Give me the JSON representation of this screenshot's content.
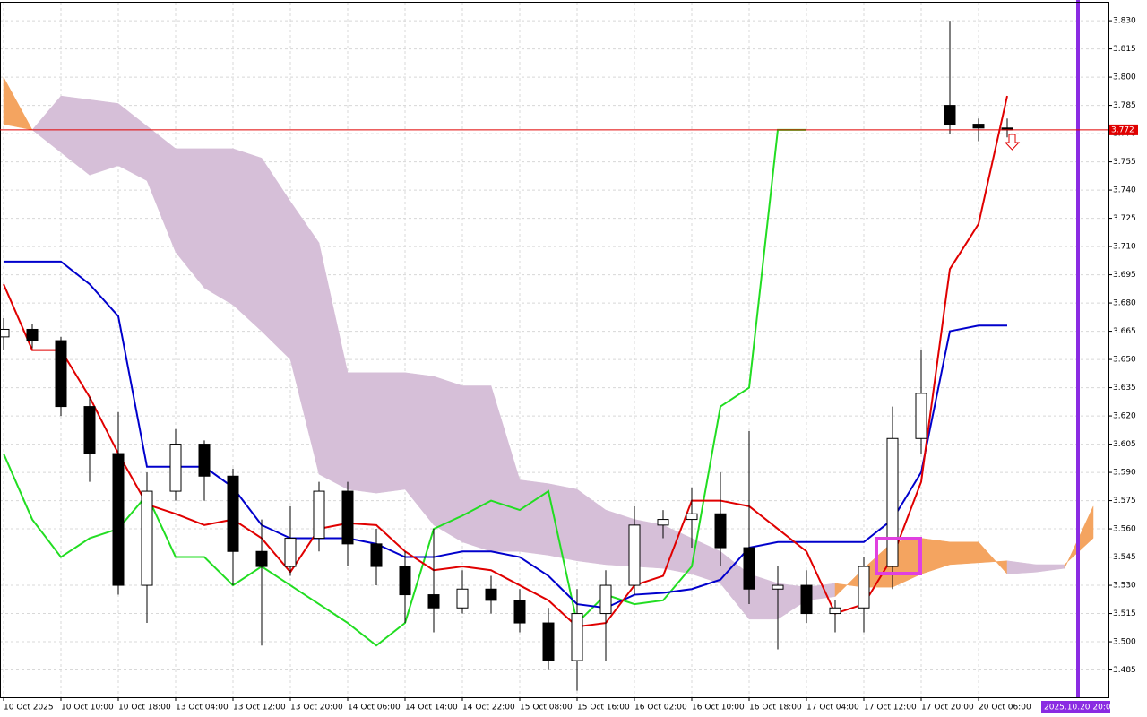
{
  "chart_data": {
    "type": "candlestick",
    "categories": [
      "10 Oct 2025",
      null,
      "10 Oct 10:00",
      null,
      "10 Oct 18:00",
      null,
      "13 Oct 04:00",
      null,
      "13 Oct 12:00",
      null,
      "13 Oct 20:00",
      null,
      "14 Oct 06:00",
      null,
      "14 Oct 14:00",
      null,
      "14 Oct 22:00",
      null,
      "15 Oct 08:00",
      null,
      "15 Oct 16:00",
      null,
      "16 Oct 02:00",
      null,
      "16 Oct 10:00",
      null,
      "16 Oct 18:00",
      null,
      "17 Oct 04:00",
      null,
      "17 Oct 12:00",
      null,
      "17 Oct 20:00",
      null,
      "20 Oct 06:00",
      null,
      null,
      null,
      null
    ],
    "open": [
      3.662,
      3.666,
      3.66,
      3.625,
      3.6,
      3.53,
      3.58,
      3.605,
      3.588,
      3.548,
      3.54,
      3.555,
      3.58,
      3.552,
      3.54,
      3.525,
      3.518,
      3.528,
      3.522,
      3.51,
      3.49,
      3.515,
      3.53,
      3.562,
      3.565,
      3.568,
      3.55,
      3.528,
      3.53,
      3.515,
      3.518,
      3.54,
      3.608,
      3.785,
      3.775,
      3.773,
      null,
      null,
      null
    ],
    "high": [
      3.672,
      3.669,
      3.662,
      3.63,
      3.622,
      3.59,
      3.613,
      3.607,
      3.592,
      3.565,
      3.572,
      3.585,
      3.585,
      3.56,
      3.548,
      3.56,
      3.538,
      3.535,
      3.528,
      3.518,
      3.528,
      3.538,
      3.572,
      3.57,
      3.582,
      3.59,
      3.612,
      3.54,
      3.538,
      3.522,
      3.545,
      3.625,
      3.655,
      3.83,
      3.778,
      3.778,
      null,
      null,
      null
    ],
    "low": [
      3.655,
      3.656,
      3.62,
      3.585,
      3.525,
      3.51,
      3.575,
      3.575,
      3.53,
      3.498,
      3.535,
      3.548,
      3.54,
      3.53,
      3.51,
      3.505,
      3.515,
      3.515,
      3.505,
      3.485,
      3.474,
      3.49,
      3.525,
      3.555,
      3.55,
      3.54,
      3.52,
      3.496,
      3.51,
      3.505,
      3.505,
      3.528,
      3.6,
      3.77,
      3.766,
      3.768,
      null,
      null,
      null
    ],
    "close": [
      3.666,
      3.66,
      3.625,
      3.6,
      3.53,
      3.58,
      3.605,
      3.588,
      3.548,
      3.54,
      3.555,
      3.58,
      3.552,
      3.54,
      3.525,
      3.518,
      3.528,
      3.522,
      3.51,
      3.49,
      3.515,
      3.53,
      3.562,
      3.565,
      3.568,
      3.55,
      3.528,
      3.53,
      3.515,
      3.518,
      3.54,
      3.608,
      3.632,
      3.775,
      3.773,
      3.772,
      null,
      null,
      null
    ],
    "bull_color": "#ffffff",
    "bear_color": "#000000",
    "wick_color": "#000000",
    "indicators": {
      "tenkan_sen": {
        "color": "#e00000",
        "values": [
          3.69,
          3.655,
          3.655,
          3.63,
          3.6,
          3.573,
          3.568,
          3.562,
          3.565,
          3.555,
          3.537,
          3.56,
          3.563,
          3.562,
          3.548,
          3.538,
          3.54,
          3.538,
          3.53,
          3.522,
          3.508,
          3.51,
          3.53,
          3.535,
          3.575,
          3.575,
          3.572,
          3.56,
          3.548,
          3.515,
          3.52,
          3.545,
          3.585,
          3.698,
          3.722,
          3.79,
          null,
          null,
          null
        ]
      },
      "kijun_sen": {
        "color": "#0000cc",
        "values": [
          3.702,
          3.702,
          3.702,
          3.69,
          3.673,
          3.593,
          3.593,
          3.593,
          3.582,
          3.562,
          3.555,
          3.555,
          3.555,
          3.552,
          3.545,
          3.545,
          3.548,
          3.548,
          3.545,
          3.535,
          3.52,
          3.518,
          3.525,
          3.526,
          3.528,
          3.533,
          3.55,
          3.553,
          3.553,
          3.553,
          3.553,
          3.565,
          3.59,
          3.665,
          3.668,
          3.668,
          null,
          null,
          null
        ]
      },
      "chikou_span": {
        "color": "#22dd22",
        "values": [
          3.6,
          3.565,
          3.545,
          3.555,
          3.56,
          3.578,
          3.545,
          3.545,
          3.53,
          3.54,
          3.53,
          3.52,
          3.51,
          3.498,
          3.51,
          3.56,
          3.567,
          3.575,
          3.57,
          3.58,
          3.51,
          3.525,
          3.52,
          3.522,
          3.54,
          3.625,
          3.635,
          3.772,
          3.772,
          null,
          null,
          null,
          null,
          null,
          null,
          null,
          null,
          null,
          null
        ]
      },
      "senkou_span_a": {
        "values": [
          3.8,
          3.772,
          3.76,
          3.748,
          3.753,
          3.745,
          3.707,
          3.688,
          3.679,
          3.665,
          3.65,
          3.589,
          3.581,
          3.579,
          3.581,
          3.562,
          3.553,
          3.548,
          3.548,
          3.546,
          3.543,
          3.541,
          3.54,
          3.539,
          3.536,
          3.531,
          3.512,
          3.512,
          3.522,
          3.524,
          3.539,
          3.553,
          3.555,
          3.553,
          3.553,
          3.536,
          3.537,
          3.539,
          3.572
        ]
      },
      "senkou_span_b": {
        "values": [
          3.775,
          3.772,
          3.79,
          3.788,
          3.786,
          3.774,
          3.762,
          3.762,
          3.762,
          3.757,
          3.734,
          3.712,
          3.643,
          3.643,
          3.643,
          3.641,
          3.636,
          3.636,
          3.586,
          3.584,
          3.581,
          3.57,
          3.565,
          3.562,
          3.555,
          3.548,
          3.536,
          3.531,
          3.529,
          3.531,
          3.529,
          3.529,
          3.536,
          3.541,
          3.542,
          3.543,
          3.541,
          3.541,
          3.555
        ]
      },
      "cloud_up_color": "#f4a460",
      "cloud_down_color": "#d6bfd8"
    },
    "last_price": 3.772,
    "last_price_color": "#e00000",
    "crosshair_time": "2025.10.20 20:00",
    "ylim": [
      3.4705,
      3.841
    ],
    "yticks": [
      {
        "value": 3.83,
        "label": "3.830"
      },
      3.815,
      {
        "value": 3.8,
        "label": "3.800"
      },
      3.785,
      {
        "value": 3.77,
        "label": "3.770"
      },
      3.755,
      {
        "value": 3.74,
        "label": "3.740"
      },
      3.725,
      {
        "value": 3.71,
        "label": "3.710"
      },
      3.695,
      {
        "value": 3.68,
        "label": "3.680"
      },
      3.665,
      {
        "value": 3.65,
        "label": "3.650"
      },
      3.635,
      {
        "value": 3.62,
        "label": "3.620"
      },
      3.605,
      {
        "value": 3.59,
        "label": "3.590"
      },
      3.575,
      {
        "value": 3.56,
        "label": "3.560"
      },
      3.545,
      {
        "value": 3.53,
        "label": "3.530"
      },
      3.515,
      {
        "value": 3.5,
        "label": "3.500"
      },
      3.485
    ],
    "grid": true
  }
}
